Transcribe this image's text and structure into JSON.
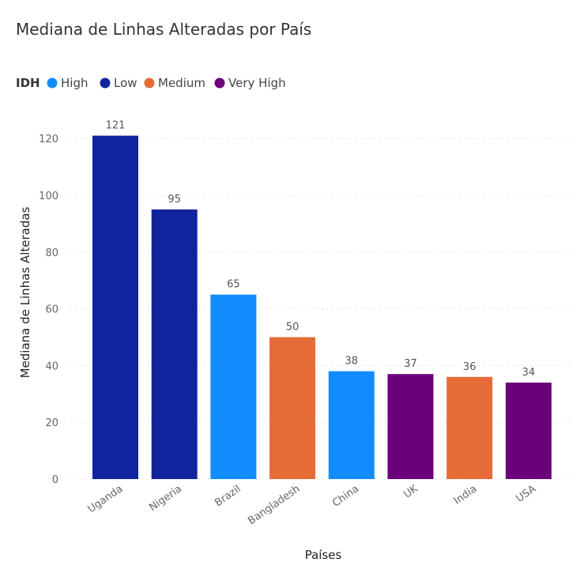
{
  "chart_data": {
    "type": "bar",
    "title": "Mediana de Linhas Alteradas por País",
    "xlabel": "Países",
    "ylabel": "Mediana de Linhas Alteradas",
    "ylim": [
      0,
      130
    ],
    "yticks": [
      0,
      20,
      40,
      60,
      80,
      100,
      120
    ],
    "grid": true,
    "legend": {
      "title": "IDH",
      "placement": "top-left",
      "entries": [
        {
          "label": "High",
          "color": "#118DFF"
        },
        {
          "label": "Low",
          "color": "#12239E"
        },
        {
          "label": "Medium",
          "color": "#E66C37"
        },
        {
          "label": "Very High",
          "color": "#6B007B"
        }
      ]
    },
    "categories": [
      "Uganda",
      "Nigeria",
      "Brazil",
      "Bangladesh",
      "China",
      "UK",
      "India",
      "USA"
    ],
    "values": [
      121,
      95,
      65,
      50,
      38,
      37,
      36,
      34
    ],
    "groups": [
      "Low",
      "Low",
      "High",
      "Medium",
      "High",
      "Very High",
      "Medium",
      "Very High"
    ]
  }
}
